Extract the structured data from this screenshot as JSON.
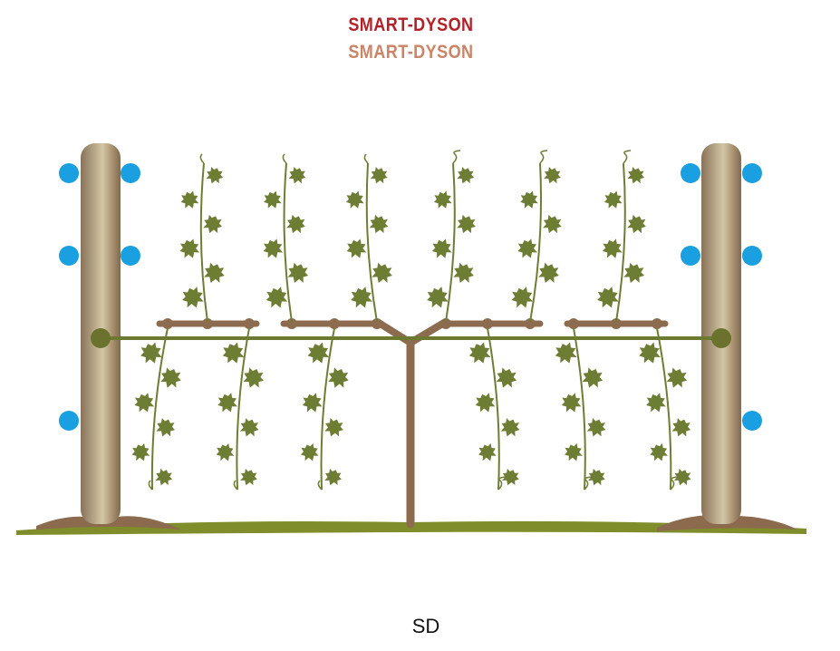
{
  "title": {
    "line1": "SMART-DYSON",
    "line2": "SMART-DYSON"
  },
  "caption": "SD",
  "colors": {
    "title_line1": "#b22128",
    "title_line2": "#cc8466",
    "post": "#9c8466",
    "post_highlight": "#cfc4a2",
    "trunk": "#8c6b4f",
    "cordon": "#8c6b4f",
    "wire": "#6b7a2e",
    "wire_anchor": "#6b722e",
    "catch_wire_dot": "#1aa0e0",
    "foliage": "#6e7d34",
    "ground": "#7f8e2a",
    "soil": "#8b6a4e"
  },
  "icons": {
    "leaf": "grape-leaf-icon",
    "catch_wire": "catch-wire-icon"
  }
}
